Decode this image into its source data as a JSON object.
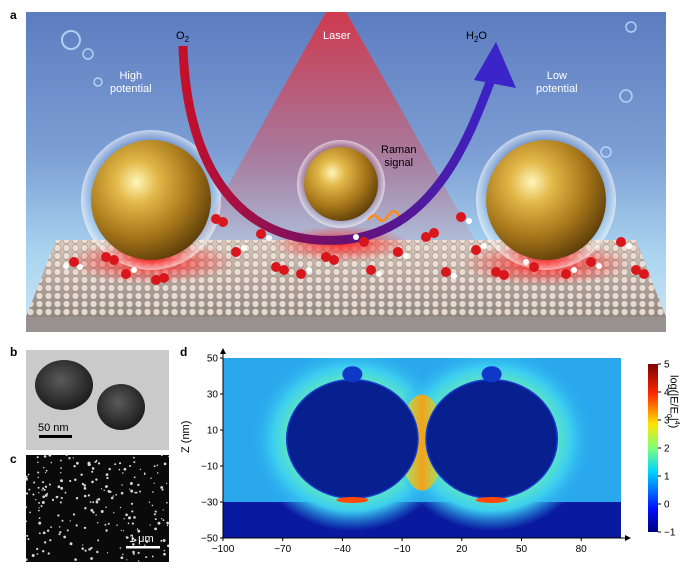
{
  "panel_letters": {
    "a": "a",
    "b": "b",
    "c": "c",
    "d": "d"
  },
  "panel_a": {
    "laser": "Laser",
    "o2": "O",
    "o2_sub": "2",
    "h2o_h": "H",
    "h2o_sub": "2",
    "h2o_o": "O",
    "high_potential": [
      "High",
      "potential"
    ],
    "low_potential": [
      "Low",
      "potential"
    ],
    "raman_signal": [
      "Raman",
      "signal"
    ]
  },
  "panel_b": {
    "scale_bar": "50 nm"
  },
  "panel_c": {
    "scale_bar": "1 μm"
  },
  "chart_data": {
    "type": "heatmap",
    "x_ticks": [
      -100,
      -70,
      -40,
      -10,
      20,
      50,
      80
    ],
    "y_ticks": [
      50,
      30,
      10,
      -10,
      -30,
      -50
    ],
    "xlim": [
      -100,
      100
    ],
    "ylim": [
      -50,
      50
    ],
    "ylabel": "Z (nm)",
    "colorbar": {
      "label": "log(|E/E0|^4)",
      "label_parts": {
        "pre": "log(|E/E",
        "sub": "0",
        "mid": "|",
        "sup": "4",
        "post": ")"
      },
      "ticks": [
        5,
        4,
        3,
        2,
        1,
        0,
        -1
      ],
      "range": [
        -1,
        5
      ]
    },
    "particles": [
      {
        "x": -35,
        "z": 5,
        "r": 33
      },
      {
        "x": 35,
        "z": 5,
        "r": 33
      }
    ],
    "substrate_top_z": -30,
    "colors": {
      "bg": "#2aa8ee",
      "cold": "#08208f",
      "hot": "#f0a21a",
      "substrate": "#0a1aa0"
    }
  }
}
